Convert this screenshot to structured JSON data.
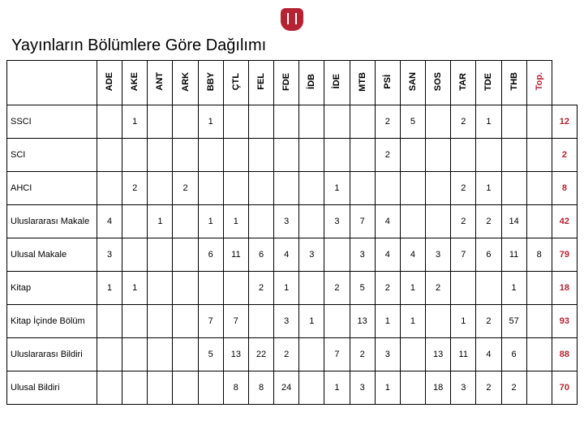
{
  "title": "Yayınların Bölümlere Göre Dağılımı",
  "columns": [
    "ADE",
    "AKE",
    "ANT",
    "ARK",
    "BBY",
    "ÇTL",
    "FEL",
    "FDE",
    "İDB",
    "İDE",
    "MTB",
    "PSİ",
    "SAN",
    "SOS",
    "TAR",
    "TDE",
    "THB",
    "Top."
  ],
  "rows": [
    {
      "label": "SSCI",
      "cells": [
        "",
        "1",
        "",
        "",
        "1",
        "",
        "",
        "",
        "",
        "",
        "",
        "2",
        "5",
        "",
        "2",
        "1",
        "",
        ""
      ],
      "total": "12"
    },
    {
      "label": "SCI",
      "cells": [
        "",
        "",
        "",
        "",
        "",
        "",
        "",
        "",
        "",
        "",
        "",
        "2",
        "",
        "",
        "",
        "",
        "",
        ""
      ],
      "total": "2"
    },
    {
      "label": "AHCI",
      "cells": [
        "",
        "2",
        "",
        "2",
        "",
        "",
        "",
        "",
        "",
        "1",
        "",
        "",
        "",
        "",
        "2",
        "1",
        "",
        ""
      ],
      "total": "8"
    },
    {
      "label": "Uluslararası Makale",
      "cells": [
        "4",
        "",
        "1",
        "",
        "1",
        "1",
        "",
        "3",
        "",
        "3",
        "7",
        "4",
        "",
        "",
        "2",
        "2",
        "14",
        ""
      ],
      "total": "42"
    },
    {
      "label": "Ulusal Makale",
      "cells": [
        "3",
        "",
        "",
        "",
        "6",
        "11",
        "6",
        "4",
        "3",
        "",
        "3",
        "4",
        "4",
        "3",
        "7",
        "6",
        "11",
        "8"
      ],
      "total": "79"
    },
    {
      "label": "Kitap",
      "cells": [
        "1",
        "1",
        "",
        "",
        "",
        "",
        "2",
        "1",
        "",
        "2",
        "5",
        "2",
        "1",
        "2",
        "",
        "",
        "1",
        ""
      ],
      "total": "18"
    },
    {
      "label": "Kitap İçinde Bölüm",
      "cells": [
        "",
        "",
        "",
        "",
        "7",
        "7",
        "",
        "3",
        "1",
        "",
        "13",
        "1",
        "1",
        "",
        "1",
        "2",
        "57",
        ""
      ],
      "total": "93"
    },
    {
      "label": "Uluslararası Bildiri",
      "cells": [
        "",
        "",
        "",
        "",
        "5",
        "13",
        "22",
        "2",
        "",
        "7",
        "2",
        "3",
        "",
        "13",
        "11",
        "4",
        "6",
        ""
      ],
      "total": "88"
    },
    {
      "label": "Ulusal Bildiri",
      "cells": [
        "",
        "",
        "",
        "",
        "",
        "8",
        "8",
        "24",
        "",
        "1",
        "3",
        "1",
        "",
        "18",
        "3",
        "2",
        "2",
        ""
      ],
      "total": "70"
    }
  ]
}
